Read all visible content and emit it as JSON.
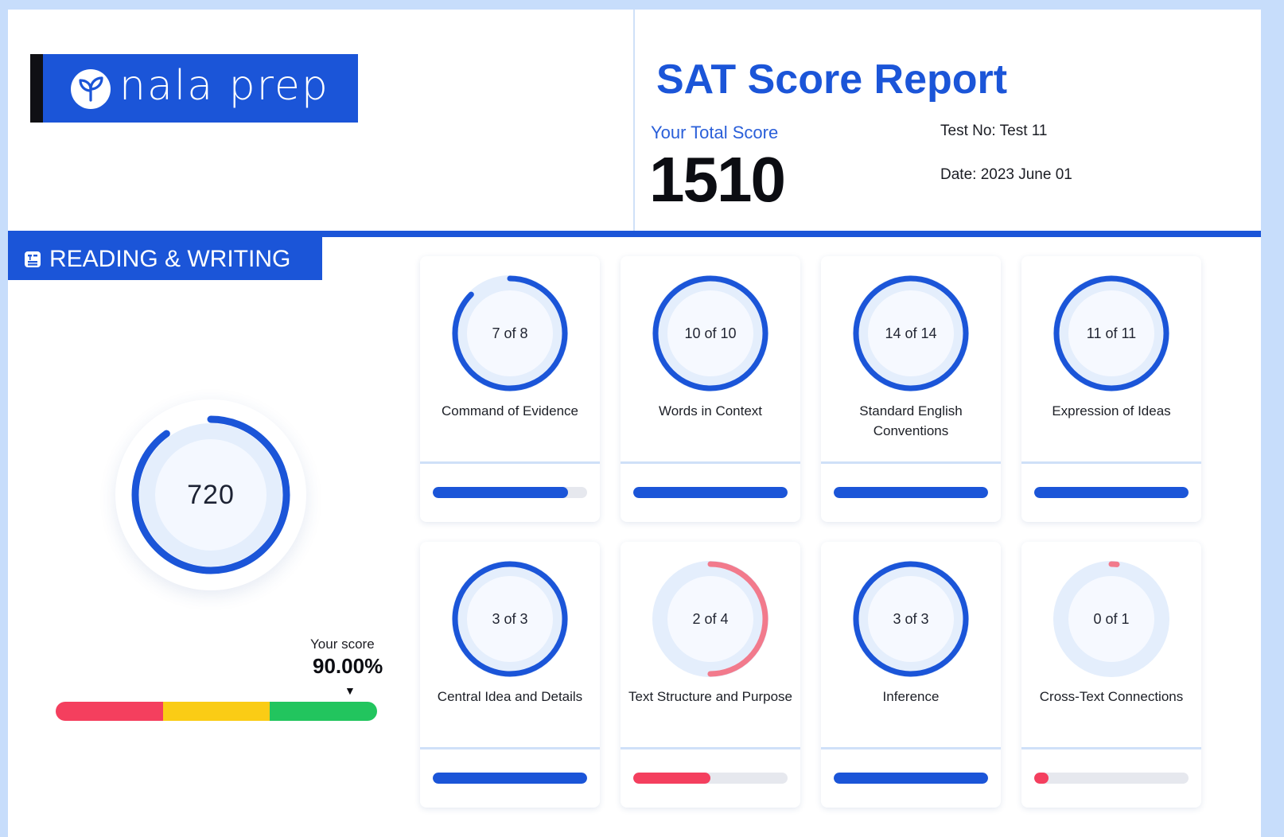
{
  "brand": {
    "name": "nala prep"
  },
  "report": {
    "title": "SAT Score Report",
    "total_label": "Your Total Score",
    "total_score": "1510",
    "test_no": "Test No: Test 11",
    "date": "Date: 2023 June 01"
  },
  "section": {
    "title": "READING & WRITING",
    "score": "720",
    "score_fraction": 0.9,
    "scale": {
      "label": "Your score",
      "percent_text": "90.00%",
      "percent_value": 90.0,
      "segments": [
        {
          "color": "#f43f5e",
          "fraction": 0.333
        },
        {
          "color": "#facc15",
          "fraction": 0.333
        },
        {
          "color": "#22c55e",
          "fraction": 0.334
        }
      ]
    }
  },
  "colors": {
    "primary": "#1b55d8",
    "alert": "#f43f5e",
    "alert_ring": "#f27a8c",
    "track": "#e6e8ee"
  },
  "skills": [
    {
      "count": "7 of 8",
      "label": "Command of Evidence",
      "fraction": 0.875,
      "status": "good"
    },
    {
      "count": "10 of 10",
      "label": "Words in Context",
      "fraction": 1.0,
      "status": "good"
    },
    {
      "count": "14 of 14",
      "label": "Standard English Conventions",
      "fraction": 1.0,
      "status": "good"
    },
    {
      "count": "11 of 11",
      "label": "Expression of Ideas",
      "fraction": 1.0,
      "status": "good"
    },
    {
      "count": "3 of 3",
      "label": "Central Idea and Details",
      "fraction": 1.0,
      "status": "good"
    },
    {
      "count": "2 of 4",
      "label": "Text Structure and Purpose",
      "fraction": 0.5,
      "status": "low"
    },
    {
      "count": "3 of 3",
      "label": "Inference",
      "fraction": 1.0,
      "status": "good"
    },
    {
      "count": "0 of 1",
      "label": "Cross-Text Connections",
      "fraction": 0.0,
      "status": "low"
    }
  ]
}
